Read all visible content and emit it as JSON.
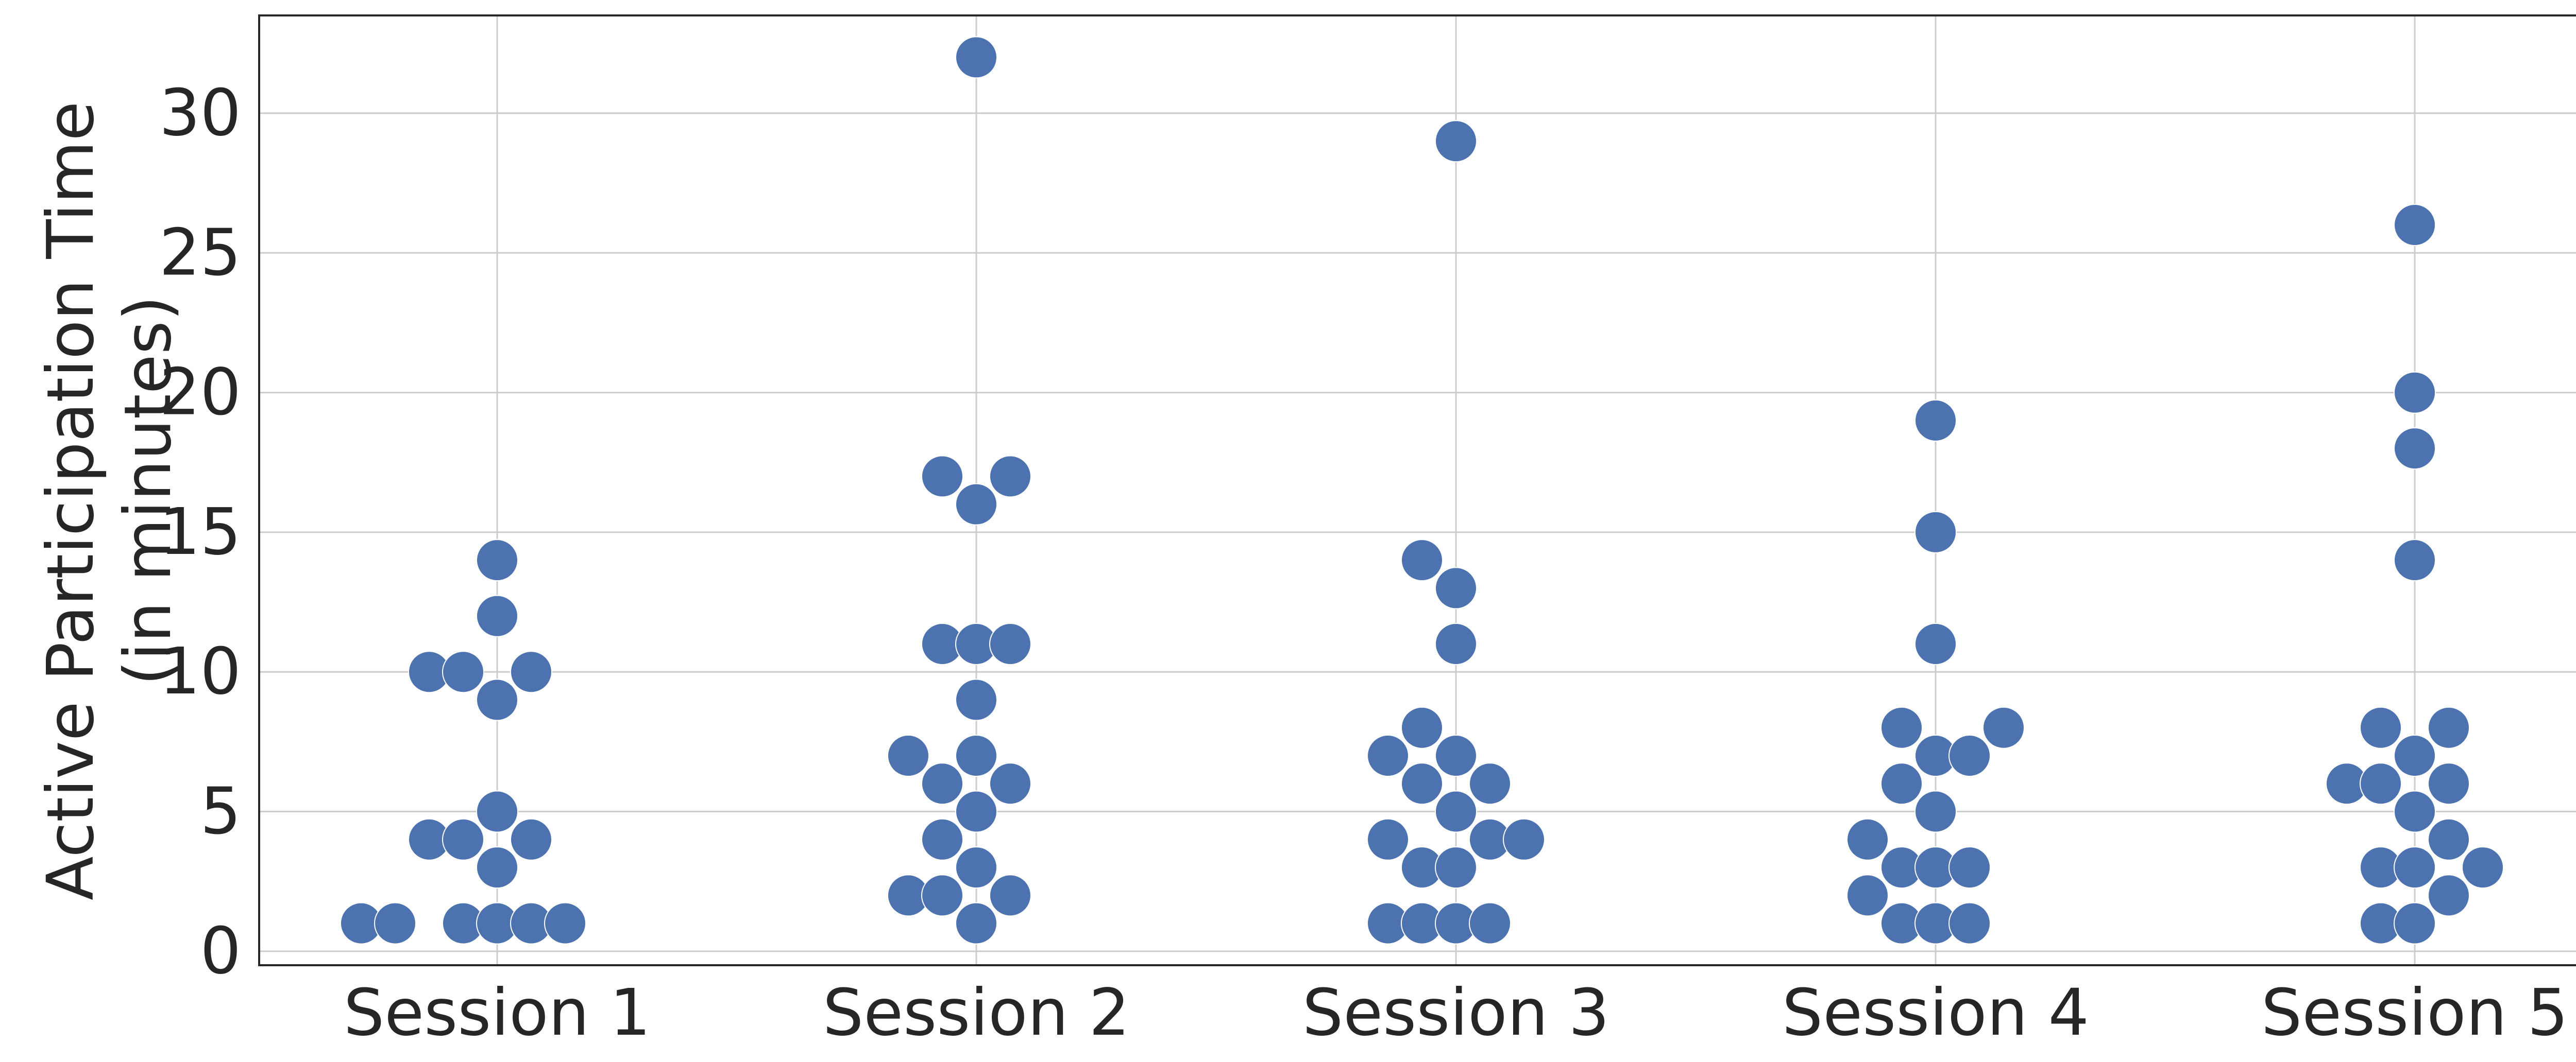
{
  "chart_data": {
    "type": "swarm",
    "title": "",
    "xlabel": "",
    "ylabel_lines": [
      "Active Participation Time",
      "(in minutes)"
    ],
    "ylim": [
      -0.5,
      33.5
    ],
    "yticks": [
      0,
      5,
      10,
      15,
      20,
      25,
      30
    ],
    "grid": true,
    "marker_color": "#4C72B0",
    "categories": [
      "Session 1",
      "Session 2",
      "Session 3",
      "Session 4",
      "Session 5"
    ],
    "series": [
      {
        "name": "Session 1",
        "values": [
          1,
          1,
          1,
          1,
          1,
          1,
          3,
          4,
          4,
          4,
          5,
          9,
          10,
          10,
          10,
          12,
          14
        ],
        "offsets": [
          -4,
          -3,
          -1,
          0,
          1,
          2,
          0,
          -2,
          -1,
          1,
          0,
          0,
          -2,
          -1,
          1,
          0,
          0
        ]
      },
      {
        "name": "Session 2",
        "values": [
          1,
          2,
          2,
          2,
          3,
          4,
          5,
          6,
          6,
          7,
          7,
          9,
          11,
          11,
          11,
          16,
          17,
          17,
          32
        ],
        "offsets": [
          0,
          -2,
          -1,
          1,
          0,
          -1,
          0,
          -1,
          1,
          -2,
          0,
          0,
          -1,
          0,
          1,
          0,
          -1,
          1,
          0
        ]
      },
      {
        "name": "Session 3",
        "values": [
          1,
          1,
          1,
          1,
          3,
          3,
          4,
          4,
          4,
          5,
          6,
          6,
          7,
          7,
          8,
          11,
          13,
          14,
          29
        ],
        "offsets": [
          -2,
          -1,
          0,
          1,
          -1,
          0,
          -2,
          1,
          2,
          0,
          -1,
          1,
          -2,
          0,
          -1,
          0,
          0,
          -1,
          0
        ]
      },
      {
        "name": "Session 4",
        "values": [
          1,
          1,
          1,
          2,
          3,
          3,
          3,
          4,
          5,
          6,
          7,
          7,
          8,
          8,
          11,
          15,
          19
        ],
        "offsets": [
          -1,
          0,
          1,
          -2,
          -1,
          0,
          1,
          -2,
          0,
          -1,
          0,
          1,
          -1,
          2,
          0,
          0,
          0
        ]
      },
      {
        "name": "Session 5",
        "values": [
          1,
          1,
          2,
          3,
          3,
          3,
          4,
          5,
          6,
          6,
          6,
          7,
          8,
          8,
          14,
          18,
          20,
          26
        ],
        "offsets": [
          -1,
          0,
          1,
          -1,
          0,
          2,
          1,
          0,
          -2,
          -1,
          1,
          0,
          -1,
          1,
          0,
          0,
          0,
          0
        ]
      }
    ]
  }
}
